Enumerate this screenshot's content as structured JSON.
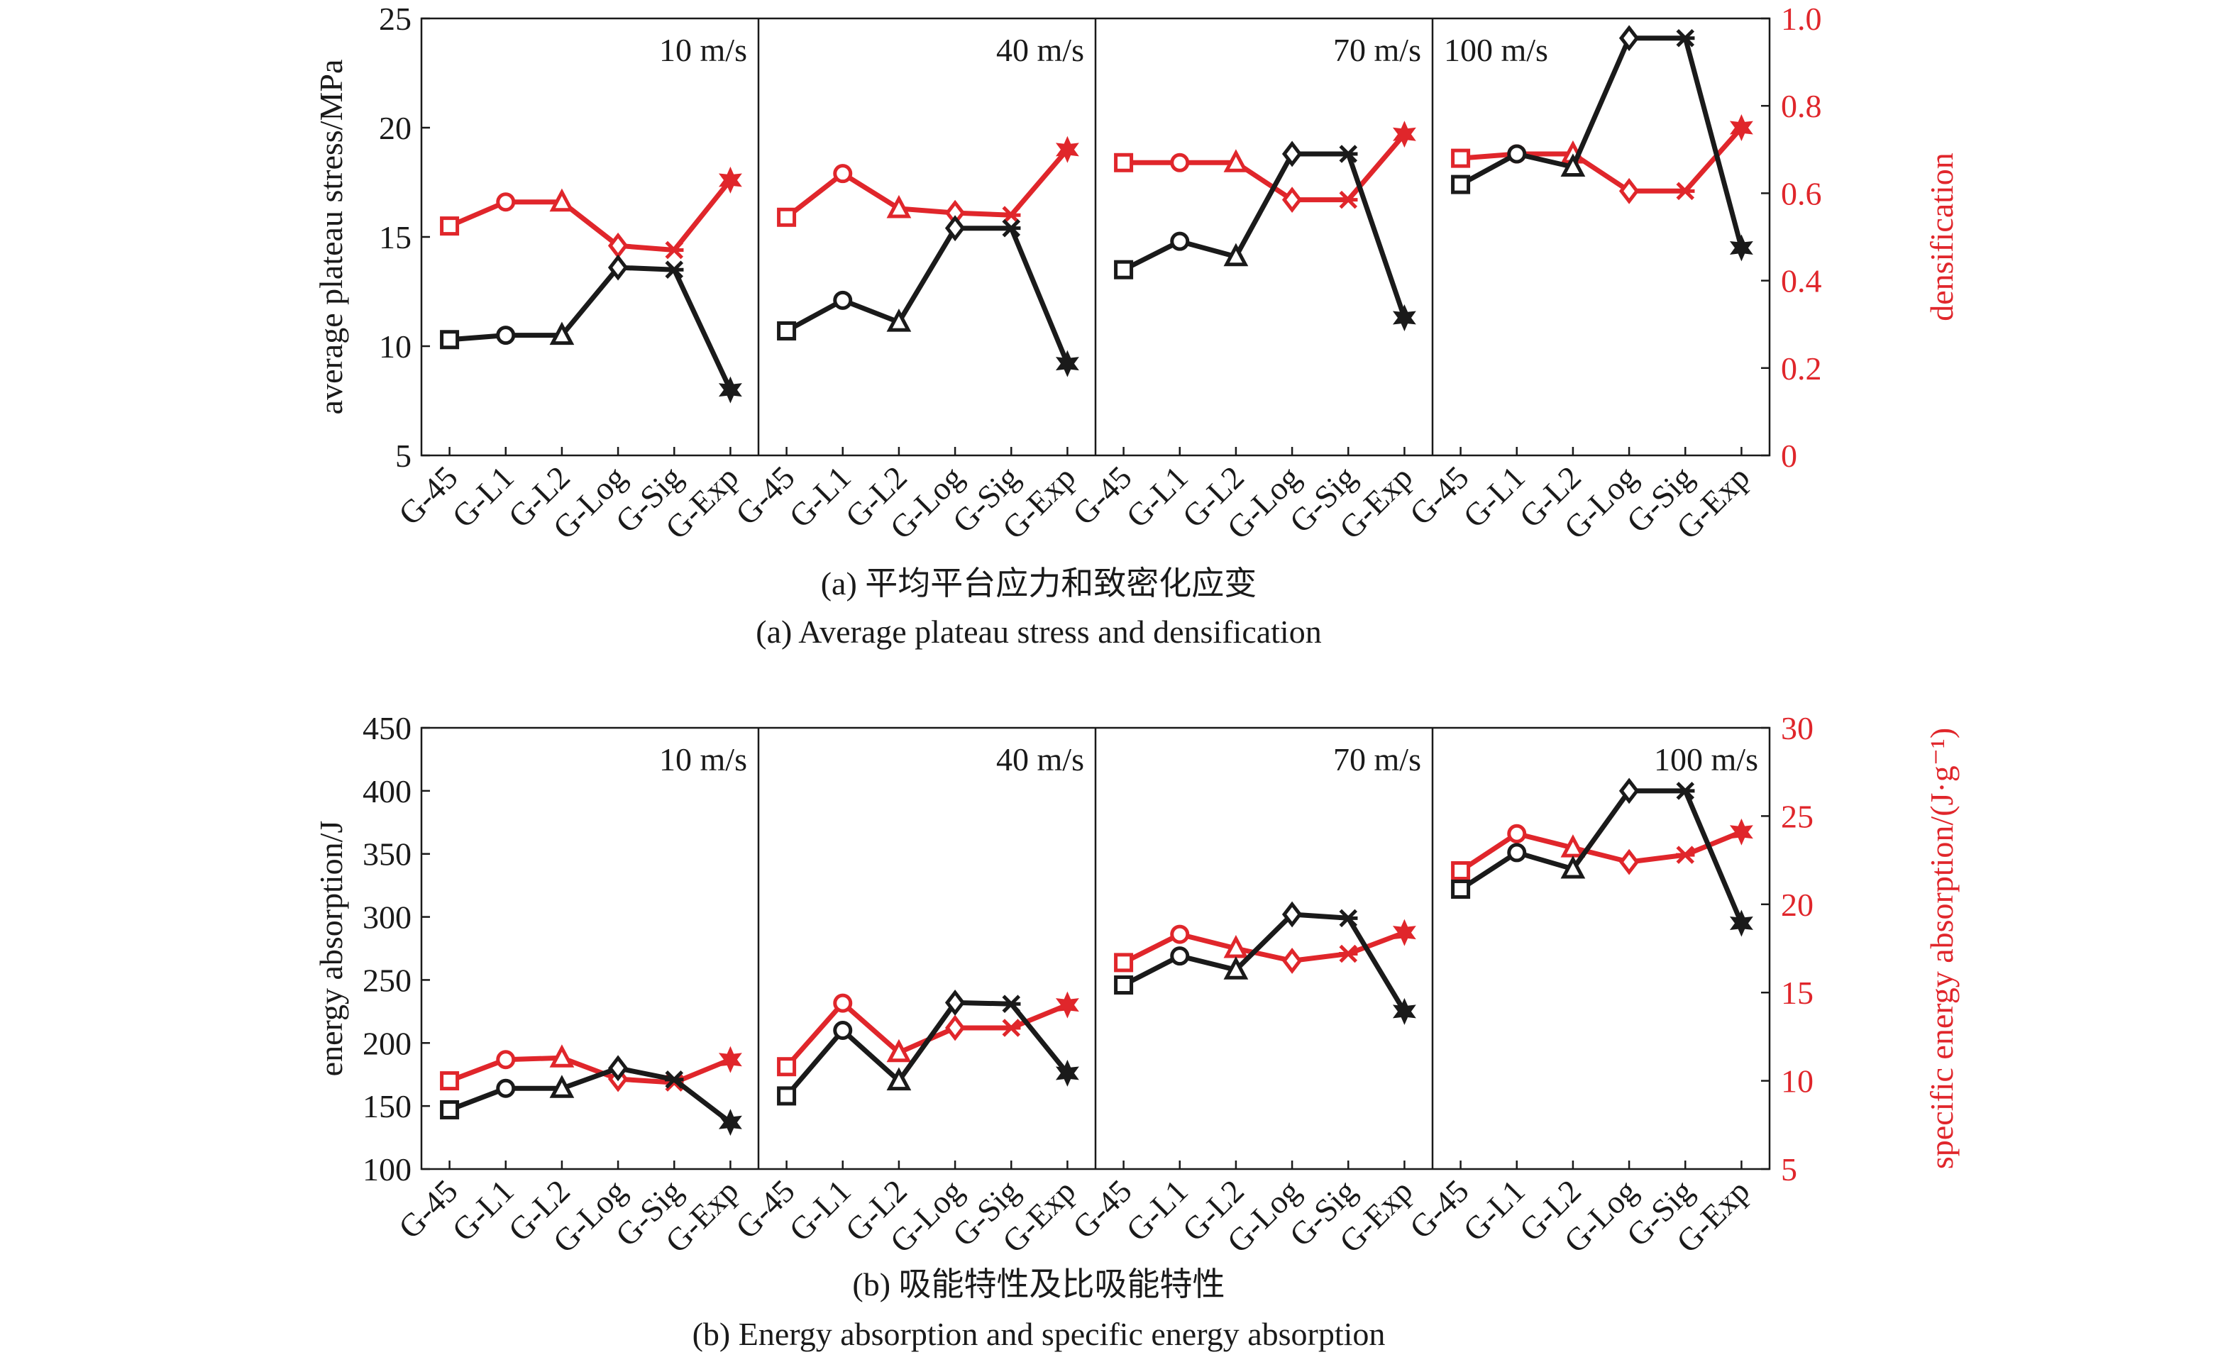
{
  "colors": {
    "black": "#1a1a1a",
    "red": "#e0262b"
  },
  "chart_data": [
    {
      "id": "a",
      "type": "line",
      "caption_zh": "(a) 平均平台应力和致密化应变",
      "caption_en": "(a) Average plateau stress and densification",
      "ylabel": "average plateau stress/MPa",
      "ylabel_right": "densification",
      "ylim": [
        5,
        25
      ],
      "yticks": [
        "5",
        "10",
        "15",
        "20",
        "25"
      ],
      "ylim_right": [
        0,
        1.0
      ],
      "yticks_right": [
        "0",
        "0.2",
        "0.4",
        "0.6",
        "0.8",
        "1.0"
      ],
      "categories": [
        "G-45",
        "G-L1",
        "G-L2",
        "G-Log",
        "G-Sig",
        "G-Exp"
      ],
      "markers": [
        "square",
        "circle",
        "triangle",
        "diamond",
        "cross",
        "star"
      ],
      "panels": [
        {
          "label": "10 m/s",
          "label_pos": "right",
          "series": [
            {
              "axis": "left",
              "color": "black",
              "values": [
                10.3,
                10.5,
                10.5,
                13.6,
                13.5,
                8.0
              ]
            },
            {
              "axis": "right",
              "color": "red",
              "values": [
                0.525,
                0.58,
                0.58,
                0.48,
                0.47,
                0.63
              ]
            }
          ]
        },
        {
          "label": "40 m/s",
          "label_pos": "right",
          "series": [
            {
              "axis": "left",
              "color": "black",
              "values": [
                10.7,
                12.1,
                11.1,
                15.4,
                15.4,
                9.2
              ]
            },
            {
              "axis": "right",
              "color": "red",
              "values": [
                0.545,
                0.645,
                0.565,
                0.555,
                0.55,
                0.7
              ]
            }
          ]
        },
        {
          "label": "70 m/s",
          "label_pos": "right",
          "series": [
            {
              "axis": "left",
              "color": "black",
              "values": [
                13.5,
                14.8,
                14.1,
                18.8,
                18.8,
                11.3
              ]
            },
            {
              "axis": "right",
              "color": "red",
              "values": [
                0.67,
                0.67,
                0.67,
                0.585,
                0.585,
                0.735
              ]
            }
          ]
        },
        {
          "label": "100 m/s",
          "label_pos": "left",
          "series": [
            {
              "axis": "left",
              "color": "black",
              "values": [
                17.4,
                18.8,
                18.2,
                24.1,
                24.1,
                14.5
              ]
            },
            {
              "axis": "right",
              "color": "red",
              "values": [
                0.68,
                0.69,
                0.69,
                0.605,
                0.605,
                0.75
              ]
            }
          ]
        }
      ]
    },
    {
      "id": "b",
      "type": "line",
      "caption_zh": "(b) 吸能特性及比吸能特性",
      "caption_en": "(b) Energy absorption and specific energy absorption",
      "ylabel": "energy absorption/J",
      "ylabel_right": "specific energy absorption/(J·g⁻¹)",
      "ylim": [
        100,
        450
      ],
      "yticks": [
        "100",
        "150",
        "200",
        "250",
        "300",
        "350",
        "400",
        "450"
      ],
      "ylim_right": [
        5,
        30
      ],
      "yticks_right": [
        "5",
        "10",
        "15",
        "20",
        "25",
        "30"
      ],
      "categories": [
        "G-45",
        "G-L1",
        "G-L2",
        "G-Log",
        "G-Sig",
        "G-Exp"
      ],
      "markers": [
        "square",
        "circle",
        "triangle",
        "diamond",
        "cross",
        "star"
      ],
      "panels": [
        {
          "label": "10 m/s",
          "label_pos": "right",
          "series": [
            {
              "axis": "left",
              "color": "black",
              "values": [
                147,
                164,
                164,
                180,
                171,
                137
              ]
            },
            {
              "axis": "right",
              "color": "red",
              "values": [
                10.0,
                11.2,
                11.3,
                10.1,
                9.9,
                11.2
              ]
            }
          ]
        },
        {
          "label": "40 m/s",
          "label_pos": "right",
          "series": [
            {
              "axis": "left",
              "color": "black",
              "values": [
                158,
                210,
                170,
                232,
                231,
                176
              ]
            },
            {
              "axis": "right",
              "color": "red",
              "values": [
                10.8,
                14.4,
                11.6,
                13.0,
                13.0,
                14.3
              ]
            }
          ]
        },
        {
          "label": "70 m/s",
          "label_pos": "right",
          "series": [
            {
              "axis": "left",
              "color": "black",
              "values": [
                246,
                269,
                258,
                302,
                299,
                225
              ]
            },
            {
              "axis": "right",
              "color": "red",
              "values": [
                16.7,
                18.3,
                17.5,
                16.8,
                17.2,
                18.4
              ]
            }
          ]
        },
        {
          "label": "100 m/s",
          "label_pos": "right",
          "series": [
            {
              "axis": "left",
              "color": "black",
              "values": [
                322,
                351,
                338,
                400,
                400,
                295
              ]
            },
            {
              "axis": "right",
              "color": "red",
              "values": [
                21.9,
                24.0,
                23.2,
                22.4,
                22.8,
                24.1
              ]
            }
          ]
        }
      ]
    }
  ]
}
